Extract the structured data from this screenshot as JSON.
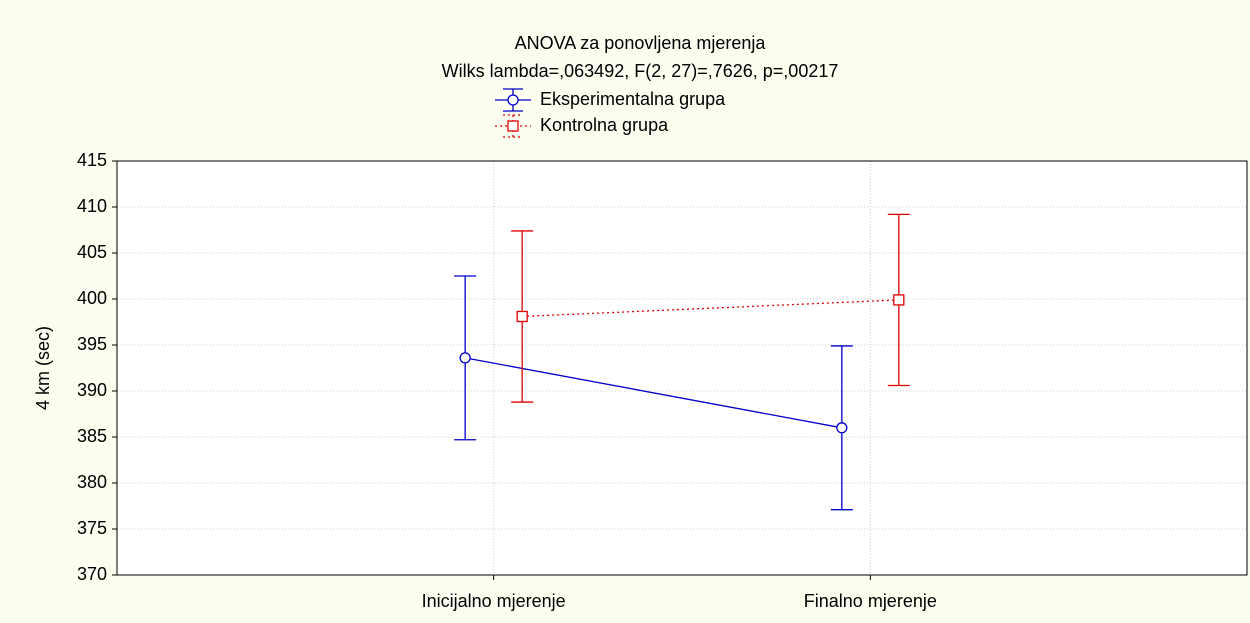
{
  "chart_data": {
    "type": "line",
    "title": "ANOVA za ponovljena mjerenja",
    "subtitle": "Wilks lambda=,063492, F(2, 27)=,7626, p=,00217",
    "ylabel": "4 km (sec)",
    "categories": [
      "Inicijalno mjerenje",
      "Finalno mjerenje"
    ],
    "series": [
      {
        "name": "Eksperimentalna grupa",
        "color": "#0000cc",
        "marker": "circle",
        "linestyle": "solid",
        "values": [
          393.6,
          386.0
        ],
        "errors": [
          8.9,
          8.9
        ]
      },
      {
        "name": "Kontrolna grupa",
        "color": "#e00000",
        "marker": "square",
        "linestyle": "dotted",
        "values": [
          398.1,
          399.9
        ],
        "errors": [
          9.3,
          9.3
        ]
      }
    ],
    "ylim": [
      370,
      415
    ],
    "yticks": [
      370,
      375,
      380,
      385,
      390,
      395,
      400,
      405,
      410,
      415
    ],
    "grid": true,
    "legend": "top"
  }
}
